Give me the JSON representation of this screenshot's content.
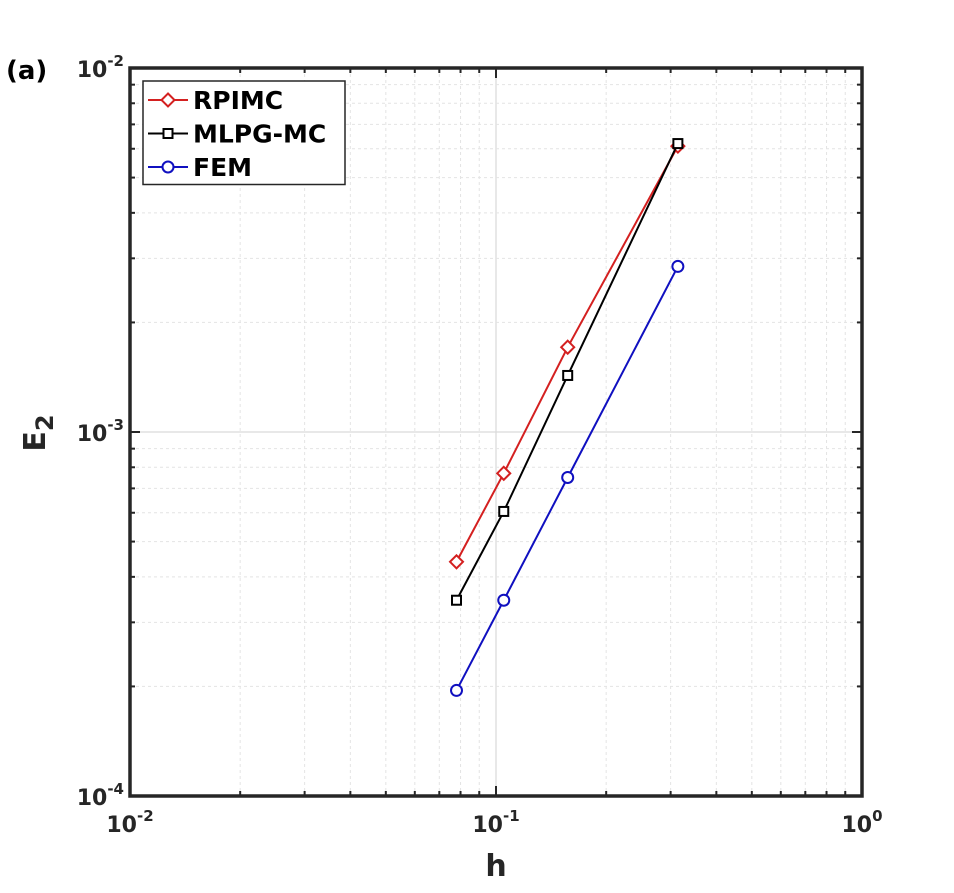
{
  "chart_data": {
    "type": "line",
    "panel_label": "(a)",
    "xlabel": "h",
    "ylabel": {
      "base": "E",
      "subscript": "2"
    },
    "xscale": "log",
    "yscale": "log",
    "xlim": [
      0.01,
      1
    ],
    "ylim": [
      0.0001,
      0.01
    ],
    "grid": true,
    "legend_position": "top-left",
    "x_ticks": [
      {
        "value": 0.01,
        "base": "10",
        "exp": "-2"
      },
      {
        "value": 0.1,
        "base": "10",
        "exp": "-1"
      },
      {
        "value": 1,
        "base": "10",
        "exp": "0"
      }
    ],
    "y_ticks": [
      {
        "value": 0.0001,
        "base": "10",
        "exp": "-4"
      },
      {
        "value": 0.001,
        "base": "10",
        "exp": "-3"
      },
      {
        "value": 0.01,
        "base": "10",
        "exp": "-2"
      }
    ],
    "series": [
      {
        "name": "RPIMC",
        "color": "#d42020",
        "marker": "diamond",
        "x": [
          0.078,
          0.105,
          0.157,
          0.314
        ],
        "y": [
          0.00044,
          0.00077,
          0.00171,
          0.0061
        ]
      },
      {
        "name": "MLPG-MC",
        "color": "#000000",
        "marker": "square",
        "x": [
          0.078,
          0.105,
          0.157,
          0.314
        ],
        "y": [
          0.000345,
          0.000605,
          0.00143,
          0.0062
        ]
      },
      {
        "name": "FEM",
        "color": "#1010c0",
        "marker": "circle",
        "x": [
          0.078,
          0.105,
          0.157,
          0.314
        ],
        "y": [
          0.000195,
          0.000345,
          0.00075,
          0.00285
        ]
      }
    ]
  }
}
